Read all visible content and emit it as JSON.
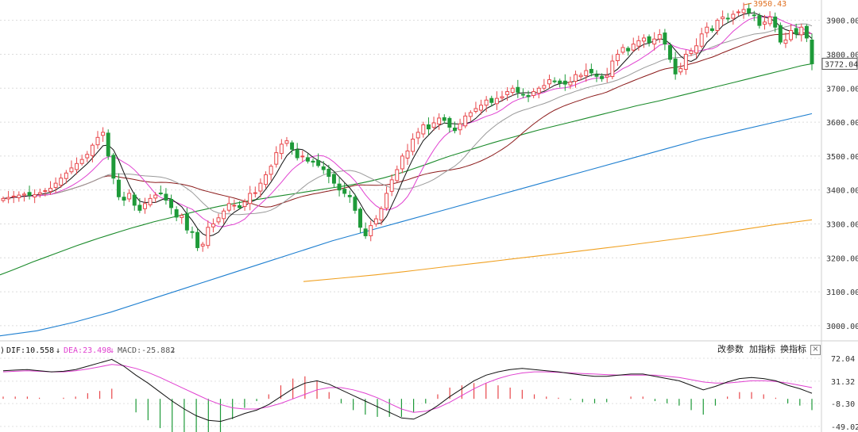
{
  "chart_data": [
    {
      "type": "candlestick",
      "ylim": [
        2960,
        3960
      ],
      "y_ticks": [
        "3900.00",
        "3800.00",
        "3700.00",
        "3600.00",
        "3500.00",
        "3400.00",
        "3300.00",
        "3200.00",
        "3100.00",
        "3000.00"
      ],
      "y_tick_values": [
        3900,
        3800,
        3700,
        3600,
        3500,
        3400,
        3300,
        3200,
        3100,
        3000
      ],
      "current_price_label": "3772.04",
      "current_price": 3772.04,
      "high_marker_label": "3950.43",
      "high_marker": 3950.43,
      "grid": true,
      "colors": {
        "up": "#e8474b",
        "down": "#1e9a39",
        "ma5": "#111111",
        "ma10": "#e040d0",
        "ma20": "#999999",
        "ma30": "#8b1a1a",
        "ma60": "#1a8a2a",
        "ma120": "#1e7fd0",
        "ma250": "#f0a020"
      },
      "closes": [
        3375,
        3378,
        3382,
        3385,
        3388,
        3383,
        3386,
        3392,
        3398,
        3405,
        3420,
        3435,
        3450,
        3465,
        3478,
        3490,
        3505,
        3532,
        3555,
        3570,
        3500,
        3435,
        3380,
        3370,
        3390,
        3355,
        3340,
        3360,
        3375,
        3385,
        3390,
        3370,
        3348,
        3320,
        3325,
        3282,
        3275,
        3230,
        3240,
        3290,
        3300,
        3318,
        3338,
        3360,
        3355,
        3348,
        3365,
        3390,
        3392,
        3420,
        3445,
        3470,
        3510,
        3535,
        3545,
        3520,
        3495,
        3500,
        3485,
        3482,
        3472,
        3460,
        3440,
        3420,
        3400,
        3390,
        3380,
        3340,
        3290,
        3265,
        3295,
        3315,
        3345,
        3390,
        3430,
        3460,
        3500,
        3515,
        3550,
        3570,
        3592,
        3580,
        3598,
        3612,
        3605,
        3585,
        3575,
        3595,
        3618,
        3628,
        3640,
        3650,
        3665,
        3658,
        3670,
        3675,
        3690,
        3700,
        3688,
        3680,
        3675,
        3690,
        3700,
        3708,
        3725,
        3720,
        3715,
        3712,
        3718,
        3740,
        3738,
        3752,
        3745,
        3735,
        3728,
        3738,
        3780,
        3800,
        3820,
        3810,
        3830,
        3840,
        3848,
        3835,
        3845,
        3858,
        3830,
        3785,
        3742,
        3758,
        3800,
        3810,
        3825,
        3860,
        3880,
        3870,
        3900,
        3910,
        3905,
        3918,
        3925,
        3932,
        3922,
        3915,
        3885,
        3895,
        3910,
        3880,
        3836,
        3842,
        3870,
        3860,
        3880,
        3848,
        3772.04
      ],
      "ma60_series": [
        3150,
        3162,
        3175,
        3188,
        3200,
        3212,
        3224,
        3236,
        3247,
        3258,
        3268,
        3278,
        3288,
        3297,
        3306,
        3314,
        3322,
        3330,
        3338,
        3345,
        3352,
        3358,
        3364,
        3370,
        3375,
        3380,
        3385,
        3390,
        3395,
        3400,
        3405,
        3410,
        3415,
        3421,
        3428,
        3436,
        3445,
        3455,
        3466,
        3477,
        3489,
        3500,
        3510,
        3520,
        3530,
        3540,
        3549,
        3558,
        3567,
        3576,
        3584,
        3592,
        3600,
        3608,
        3616,
        3624,
        3632,
        3640,
        3648,
        3655,
        3662,
        3670,
        3678,
        3686,
        3694,
        3702,
        3710,
        3718,
        3726,
        3734,
        3742,
        3750,
        3758,
        3766,
        3772.04
      ],
      "ma120_series": [
        2970,
        2985,
        3010,
        3040,
        3075,
        3110,
        3145,
        3180,
        3215,
        3250,
        3280,
        3310,
        3340,
        3370,
        3400,
        3430,
        3460,
        3490,
        3520,
        3550,
        3575,
        3600,
        3625
      ],
      "ma250_series": [
        3130,
        3140,
        3150,
        3162,
        3175,
        3187,
        3200,
        3212,
        3225,
        3238,
        3252,
        3266,
        3282,
        3298,
        3312
      ]
    },
    {
      "type": "macd",
      "ylim": [
        -49.02,
        72.04
      ],
      "y_ticks": [
        "72.04",
        "31.32",
        "-8.30",
        "-49.02"
      ],
      "y_tick_values": [
        72.04,
        31.32,
        -8.3,
        -49.02
      ],
      "dif_label": "DIF:10.558",
      "dea_label": "DEA:23.498",
      "macd_label": "MACD:-25.882",
      "header_prefix": ")",
      "colors": {
        "dif": "#111111",
        "dea": "#e040d0",
        "pos": "#e8474b",
        "neg": "#1e9a39"
      },
      "dif": [
        50,
        51,
        52,
        50,
        48,
        49,
        52,
        58,
        64,
        70,
        58,
        42,
        28,
        12,
        -4,
        -18,
        -30,
        -38,
        -40,
        -34,
        -26,
        -20,
        -10,
        4,
        18,
        28,
        32,
        26,
        16,
        6,
        -4,
        -14,
        -24,
        -34,
        -36,
        -26,
        -12,
        4,
        18,
        32,
        42,
        48,
        52,
        54,
        52,
        50,
        48,
        45,
        42,
        40,
        40,
        42,
        44,
        44,
        40,
        36,
        32,
        24,
        16,
        22,
        30,
        36,
        38,
        36,
        32,
        24,
        18,
        10
      ],
      "dea": [
        48,
        49,
        50,
        49,
        48,
        48,
        50,
        53,
        57,
        61,
        59,
        54,
        47,
        38,
        28,
        18,
        8,
        -2,
        -10,
        -16,
        -18,
        -18,
        -14,
        -8,
        0,
        8,
        16,
        20,
        20,
        16,
        10,
        2,
        -8,
        -18,
        -24,
        -22,
        -16,
        -6,
        6,
        18,
        28,
        36,
        42,
        46,
        48,
        48,
        47,
        46,
        45,
        44,
        43,
        42,
        42,
        42,
        42,
        40,
        38,
        34,
        30,
        28,
        28,
        30,
        32,
        32,
        31,
        28,
        24,
        20
      ],
      "hist": [
        4,
        4,
        4,
        2,
        0,
        2,
        4,
        10,
        14,
        18,
        0,
        -24,
        -38,
        -52,
        -64,
        -72,
        -76,
        -72,
        -60,
        -36,
        -16,
        -4,
        8,
        24,
        36,
        40,
        32,
        12,
        -8,
        -20,
        -28,
        -32,
        -32,
        -32,
        -24,
        -8,
        8,
        20,
        24,
        28,
        28,
        24,
        20,
        16,
        8,
        4,
        2,
        -2,
        -6,
        -8,
        -6,
        0,
        4,
        4,
        -4,
        -8,
        -12,
        -20,
        -28,
        -12,
        4,
        12,
        12,
        8,
        2,
        -8,
        -12,
        -20
      ]
    }
  ],
  "toolbar": {
    "params_label": "改参数",
    "add_indicator_label": "加指标",
    "switch_indicator_label": "换指标",
    "close_label": "×"
  }
}
